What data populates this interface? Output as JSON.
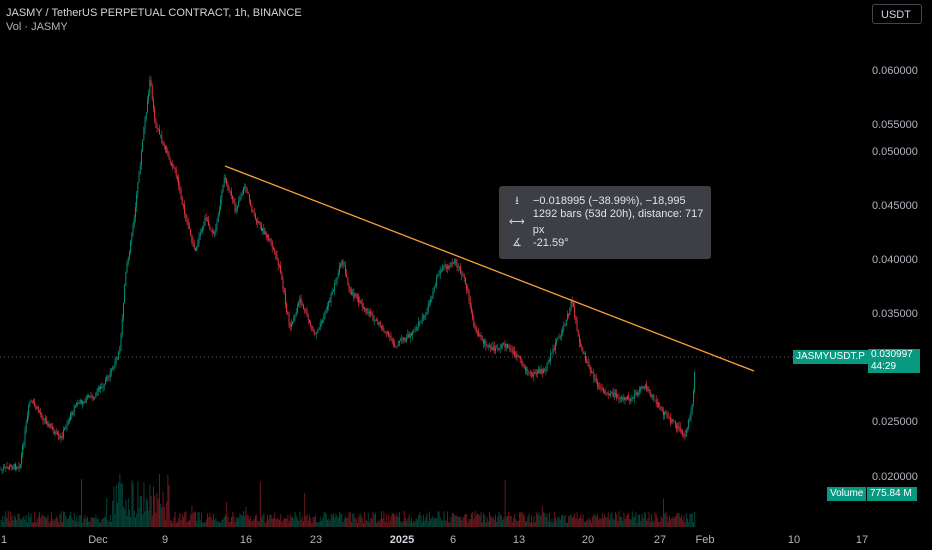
{
  "header": {
    "title": "JASMY / TetherUS PERPETUAL CONTRACT, 1h, BINANCE",
    "volume_label": "Vol · JASMY",
    "currency_button": "USDT"
  },
  "price_axis": {
    "ticks": [
      "0.060000",
      "0.055000",
      "0.050000",
      "0.045000",
      "0.040000",
      "0.035000",
      "0.025000",
      "0.020000"
    ]
  },
  "time_axis": {
    "ticks": [
      "1",
      "Dec",
      "9",
      "16",
      "23",
      "2025",
      "6",
      "13",
      "20",
      "27",
      "Feb",
      "10",
      "17"
    ]
  },
  "measure_tooltip": {
    "price_change": "−0.018995 (−38.99%), −18,995",
    "bars": "1292 bars (53d 20h), distance: 717 px",
    "angle": "-21.59°"
  },
  "last_price": {
    "symbol": "JASMYUSDT.P",
    "price": "0.030997",
    "countdown": "44:29"
  },
  "volume_badge": {
    "label": "Volume",
    "value": "775.84 M"
  },
  "colors": {
    "up": "#089981",
    "down": "#f23645",
    "trendline": "#f7a335",
    "background": "#000000"
  }
}
